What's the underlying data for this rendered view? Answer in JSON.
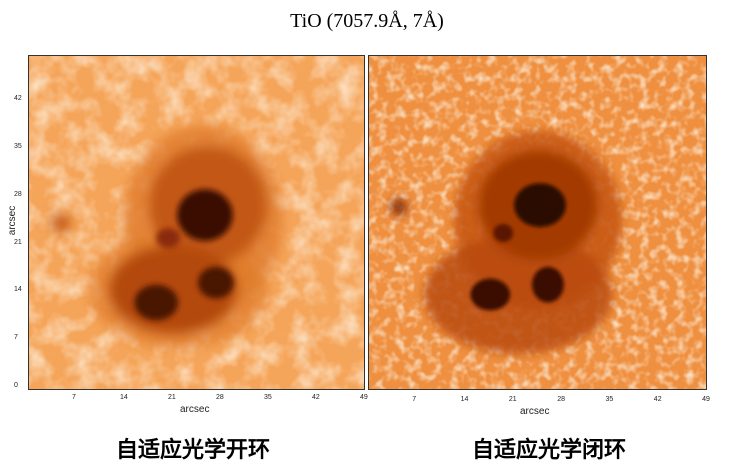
{
  "title": "TiO (7057.9Å, 7Å)",
  "axes": {
    "x_label": "arcsec",
    "y_label": "arcsec",
    "x_ticks": [
      "7",
      "14",
      "21",
      "28",
      "35",
      "42",
      "49"
    ],
    "y_ticks": [
      "0",
      "7",
      "14",
      "21",
      "28",
      "35",
      "42"
    ]
  },
  "panels": [
    {
      "caption": "自适应光学开环"
    },
    {
      "caption": "自适应光学闭环"
    }
  ],
  "colors": {
    "photosphere": "#f7b46a",
    "penumbra": "#c8520f",
    "umbra": "#2a0800"
  }
}
